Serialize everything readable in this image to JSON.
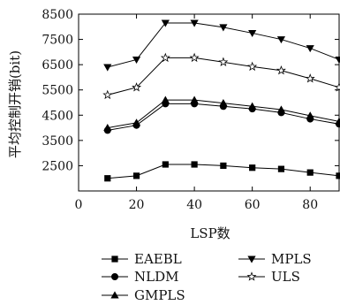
{
  "chart_data": {
    "type": "line",
    "title": "",
    "xlabel": "LSP数",
    "ylabel": "平均控制开销(bit)",
    "xlim": [
      0,
      90
    ],
    "ylim": [
      1500,
      8500
    ],
    "x_ticks": [
      "0",
      "20",
      "40",
      "60",
      "80"
    ],
    "y_ticks": [
      "2500",
      "3500",
      "4500",
      "5500",
      "6500",
      "7500",
      "8500"
    ],
    "x": [
      10,
      20,
      30,
      40,
      50,
      60,
      70,
      80,
      90
    ],
    "series": [
      {
        "name": "EAEBL",
        "marker": "square",
        "values": [
          2000,
          2100,
          2550,
          2550,
          2500,
          2420,
          2370,
          2230,
          2100
        ]
      },
      {
        "name": "NLDM",
        "marker": "circle",
        "values": [
          3900,
          4100,
          4950,
          4950,
          4850,
          4750,
          4600,
          4350,
          4150
        ]
      },
      {
        "name": "GMPLS",
        "marker": "triangle-up",
        "values": [
          4000,
          4200,
          5100,
          5100,
          4980,
          4850,
          4720,
          4480,
          4250
        ]
      },
      {
        "name": "MPLS",
        "marker": "triangle-down",
        "values": [
          6400,
          6700,
          8150,
          8150,
          7980,
          7750,
          7500,
          7150,
          6700
        ]
      },
      {
        "name": "ULS",
        "marker": "star",
        "values": [
          5300,
          5600,
          6770,
          6770,
          6600,
          6420,
          6270,
          5950,
          5600
        ]
      }
    ],
    "grid": false,
    "legend_position": "bottom"
  }
}
